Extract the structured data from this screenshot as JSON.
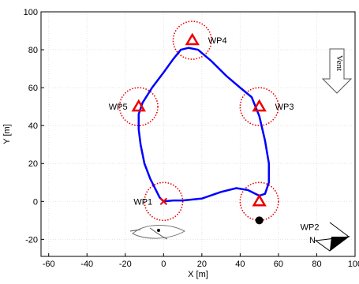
{
  "chart_data": {
    "type": "line",
    "xlabel": "X [m]",
    "ylabel": "Y [m]",
    "xlim": [
      -64,
      100
    ],
    "ylim": [
      -29,
      100
    ],
    "xticks": [
      -60,
      -40,
      -20,
      0,
      20,
      40,
      60,
      80,
      100
    ],
    "yticks": [
      -20,
      0,
      20,
      40,
      60,
      80,
      100
    ],
    "grid": true,
    "series": [
      {
        "color": "#0000ff",
        "x": [
          0,
          5,
          10,
          20,
          30,
          38,
          44,
          50,
          53,
          55,
          55,
          53,
          50,
          46,
          40,
          33,
          25,
          18,
          13,
          9,
          5,
          0,
          -6,
          -11,
          -13,
          -13,
          -12,
          -10,
          -7,
          -4,
          -2,
          0
        ],
        "y": [
          0,
          0.5,
          0.5,
          1.5,
          5,
          7,
          6,
          3,
          4,
          10,
          20,
          32,
          45,
          55,
          60,
          66,
          74,
          80,
          81,
          80,
          75,
          68,
          60,
          52,
          46,
          38,
          30,
          20,
          12,
          6,
          2,
          0
        ]
      }
    ],
    "waypoints": [
      {
        "label": "WP1",
        "x": 0,
        "y": 0,
        "marker": "x"
      },
      {
        "label": "WP2",
        "x": 50,
        "y": 0,
        "marker": "triangle"
      },
      {
        "label": "WP3",
        "x": 50,
        "y": 50,
        "marker": "triangle"
      },
      {
        "label": "WP4",
        "x": 15,
        "y": 85,
        "marker": "triangle"
      },
      {
        "label": "WP5",
        "x": -13,
        "y": 50,
        "marker": "triangle"
      }
    ],
    "zone_radius": 10,
    "target": {
      "x": 50,
      "y": -10
    },
    "annotations": {
      "wind": "Vent",
      "north": "N"
    }
  }
}
